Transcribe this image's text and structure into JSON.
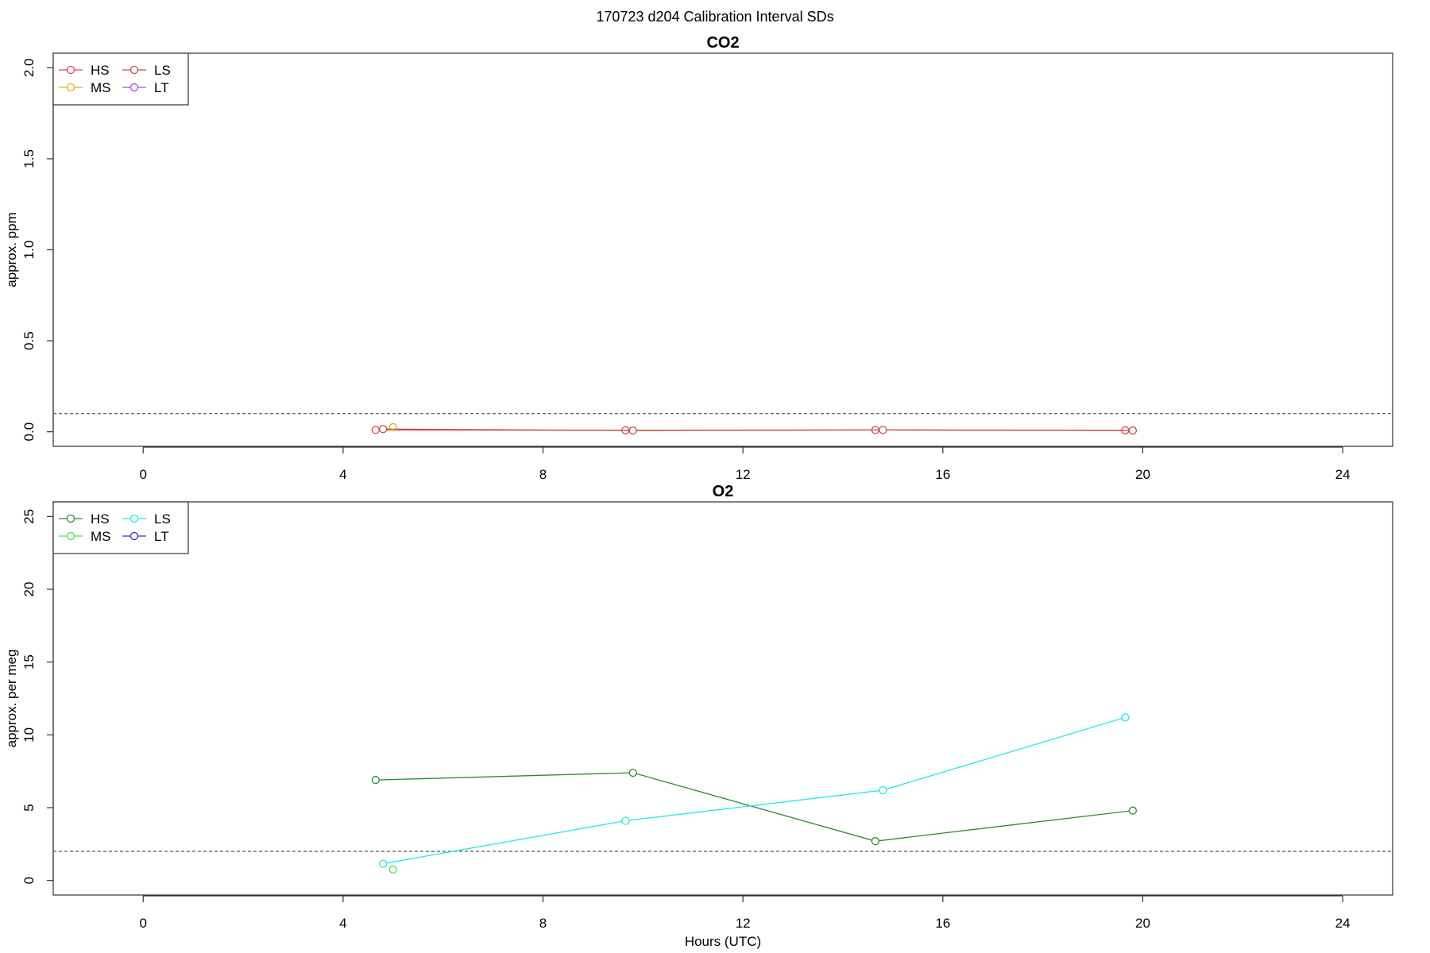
{
  "page_title": "170723   d204   Calibration Interval SDs",
  "chart_data": [
    {
      "type": "line",
      "title": "CO2",
      "xlabel": "",
      "ylabel": "approx. ppm",
      "xlim": [
        -1.8,
        25
      ],
      "ylim": [
        -0.08,
        2.08
      ],
      "xticks": [
        0,
        4,
        8,
        12,
        16,
        20,
        24
      ],
      "yticks": [
        0.0,
        0.5,
        1.0,
        1.5,
        2.0
      ],
      "ytick_labels": [
        "0.0",
        "0.5",
        "1.0",
        "1.5",
        "2.0"
      ],
      "threshold": 0.1,
      "grid": false,
      "legend_position": "top-left",
      "legend": [
        {
          "label": "HS",
          "color": "#e8414f"
        },
        {
          "label": "MS",
          "color": "#f5a623"
        },
        {
          "label": "LS",
          "color": "#c0504d"
        },
        {
          "label": "LT",
          "color": "#c040d8"
        }
      ],
      "series": [
        {
          "name": "HS",
          "color": "#e8414f",
          "x": [
            4.65,
            9.65,
            14.65,
            19.65
          ],
          "y": [
            0.01,
            0.008,
            0.01,
            0.008
          ]
        },
        {
          "name": "MS",
          "color": "#f5a623",
          "x": [
            5.0
          ],
          "y": [
            0.025
          ]
        },
        {
          "name": "LS",
          "color": "#c0504d",
          "x": [
            4.8,
            9.8,
            14.8,
            19.8
          ],
          "y": [
            0.015,
            0.007,
            0.01,
            0.007
          ]
        },
        {
          "name": "LT",
          "color": "#c040d8",
          "x": [],
          "y": []
        }
      ]
    },
    {
      "type": "line",
      "title": "O2",
      "xlabel": "Hours (UTC)",
      "ylabel": "approx. per meg",
      "xlim": [
        -1.8,
        25
      ],
      "ylim": [
        -1.0,
        26.0
      ],
      "xticks": [
        0,
        4,
        8,
        12,
        16,
        20,
        24
      ],
      "yticks": [
        0,
        5,
        10,
        15,
        20,
        25
      ],
      "ytick_labels": [
        "0",
        "5",
        "10",
        "15",
        "20",
        "25"
      ],
      "threshold": 2.0,
      "grid": false,
      "legend_position": "top-left",
      "legend": [
        {
          "label": "HS",
          "color": "#2e8b2e"
        },
        {
          "label": "MS",
          "color": "#55dd55"
        },
        {
          "label": "LS",
          "color": "#22e8e8"
        },
        {
          "label": "LT",
          "color": "#3333cc"
        }
      ],
      "series": [
        {
          "name": "HS",
          "color": "#2e8b2e",
          "x": [
            4.65,
            9.8,
            14.65,
            19.8
          ],
          "y": [
            6.9,
            7.4,
            2.7,
            4.8
          ]
        },
        {
          "name": "MS",
          "color": "#55dd55",
          "x": [
            5.0
          ],
          "y": [
            0.75
          ]
        },
        {
          "name": "LS",
          "color": "#22e8e8",
          "x": [
            4.8,
            9.65,
            14.8,
            19.65
          ],
          "y": [
            1.15,
            4.1,
            6.2,
            11.2
          ]
        },
        {
          "name": "LT",
          "color": "#3333cc",
          "x": [],
          "y": []
        }
      ]
    }
  ]
}
